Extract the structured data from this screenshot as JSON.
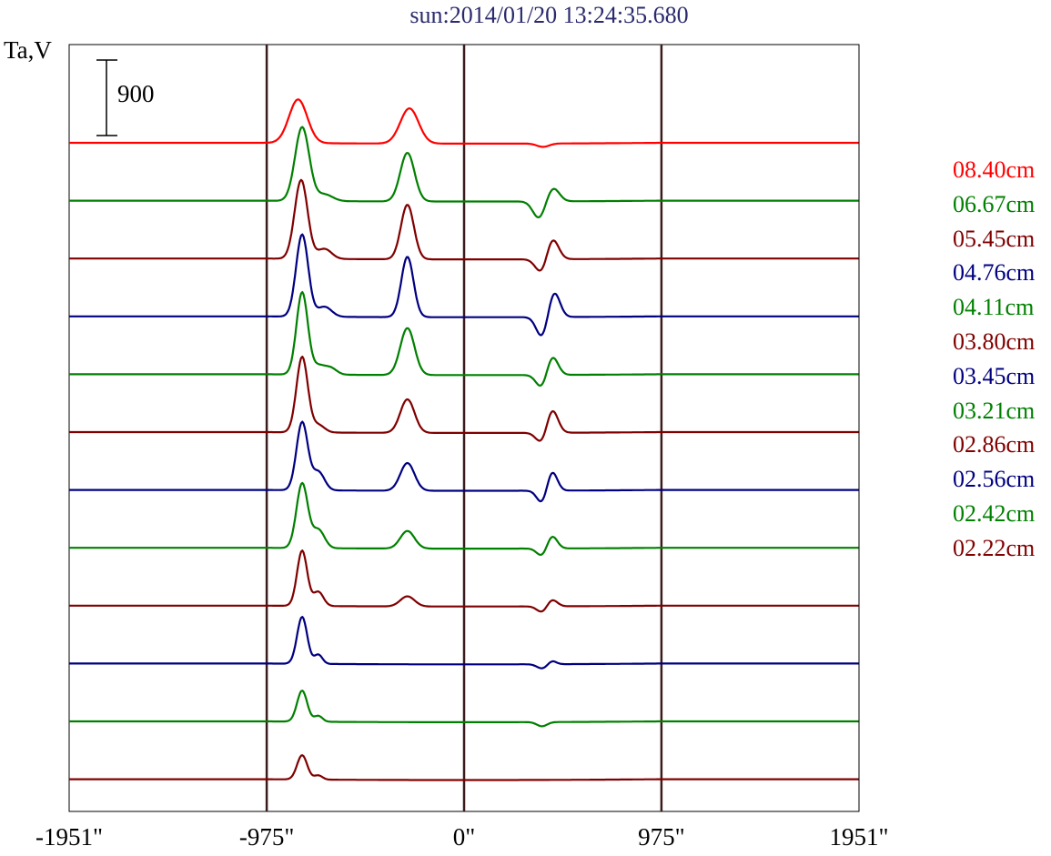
{
  "title": "sun:2014/01/20 13:24:35.680",
  "chart_data": {
    "type": "line",
    "title": "sun:2014/01/20 13:24:35.680",
    "ylabel": "Ta,V",
    "scale_bar": "900",
    "x_ticks": [
      "-1951\"",
      "-975\"",
      "0\"",
      "975\"",
      "1951\""
    ],
    "x_tick_values": [
      -1951,
      -975,
      0,
      975,
      1951
    ],
    "xlim": [
      -1951,
      1951
    ],
    "vertical_lines_at": [
      -975,
      0,
      975
    ],
    "grid": false,
    "legend_position": "right",
    "series": [
      {
        "name": "08.40cm",
        "color": "#ff0000",
        "baseline": 0,
        "peaks": [
          [
            -820,
            520,
            45
          ],
          [
            -270,
            420,
            45
          ],
          [
            390,
            -40,
            30
          ]
        ]
      },
      {
        "name": "06.67cm",
        "color": "#008000",
        "baseline": -1,
        "peaks": [
          [
            -800,
            880,
            35
          ],
          [
            -280,
            580,
            35
          ],
          [
            -690,
            80,
            40
          ],
          [
            370,
            -200,
            30
          ],
          [
            440,
            160,
            30
          ]
        ]
      },
      {
        "name": "05.45cm",
        "color": "#800000",
        "baseline": -2,
        "peaks": [
          [
            -805,
            940,
            32
          ],
          [
            -280,
            650,
            32
          ],
          [
            -690,
            120,
            35
          ],
          [
            385,
            -180,
            30
          ],
          [
            435,
            260,
            30
          ]
        ]
      },
      {
        "name": "04.76cm",
        "color": "#000080",
        "baseline": -3,
        "peaks": [
          [
            -800,
            980,
            30
          ],
          [
            -280,
            720,
            30
          ],
          [
            -690,
            120,
            35
          ],
          [
            385,
            -240,
            28
          ],
          [
            445,
            300,
            28
          ]
        ]
      },
      {
        "name": "04.11cm",
        "color": "#008000",
        "baseline": -4,
        "peaks": [
          [
            -800,
            980,
            28
          ],
          [
            -280,
            560,
            35
          ],
          [
            -720,
            100,
            30
          ],
          [
            -660,
            80,
            30
          ],
          [
            385,
            -160,
            28
          ],
          [
            435,
            230,
            28
          ]
        ]
      },
      {
        "name": "03.80cm",
        "color": "#800000",
        "baseline": -5,
        "peaks": [
          [
            -800,
            900,
            28
          ],
          [
            -280,
            400,
            35
          ],
          [
            -720,
            90,
            30
          ],
          [
            385,
            -130,
            28
          ],
          [
            435,
            280,
            28
          ]
        ]
      },
      {
        "name": "03.45cm",
        "color": "#000080",
        "baseline": -6,
        "peaks": [
          [
            -800,
            810,
            28
          ],
          [
            -280,
            330,
            35
          ],
          [
            -720,
            220,
            30
          ],
          [
            385,
            -150,
            25
          ],
          [
            435,
            230,
            25
          ]
        ]
      },
      {
        "name": "03.21cm",
        "color": "#008000",
        "baseline": -7,
        "peaks": [
          [
            -800,
            770,
            28
          ],
          [
            -280,
            210,
            35
          ],
          [
            -720,
            220,
            30
          ],
          [
            385,
            -90,
            25
          ],
          [
            435,
            150,
            25
          ]
        ]
      },
      {
        "name": "02.86cm",
        "color": "#800000",
        "baseline": -8,
        "peaks": [
          [
            -800,
            660,
            25
          ],
          [
            -280,
            120,
            35
          ],
          [
            -720,
            170,
            25
          ],
          [
            385,
            -70,
            25
          ],
          [
            435,
            80,
            25
          ]
        ]
      },
      {
        "name": "02.56cm",
        "color": "#000080",
        "baseline": -9,
        "peaks": [
          [
            -800,
            560,
            25
          ],
          [
            -720,
            110,
            20
          ],
          [
            385,
            -50,
            25
          ],
          [
            435,
            40,
            20
          ]
        ]
      },
      {
        "name": "02.42cm",
        "color": "#008000",
        "baseline": -10,
        "peaks": [
          [
            -800,
            370,
            25
          ],
          [
            -720,
            70,
            20
          ],
          [
            385,
            -50,
            25
          ]
        ]
      },
      {
        "name": "02.22cm",
        "color": "#800000",
        "baseline": -11,
        "peaks": [
          [
            -800,
            290,
            25
          ],
          [
            -720,
            50,
            20
          ]
        ]
      }
    ]
  }
}
